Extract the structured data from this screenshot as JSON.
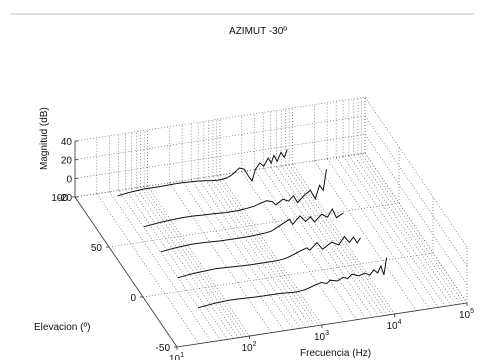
{
  "chart_data": {
    "type": "line",
    "projection": "3d-waterfall",
    "title": "AZIMUT -30º",
    "xlabel": "Frecuencia (Hz)",
    "ylabel": "Elevacion (º)",
    "zlabel": "Magnitud (dB)",
    "x_scale": "log",
    "xlim": [
      10,
      100000
    ],
    "ylim": [
      -50,
      100
    ],
    "zlim": [
      -20,
      40
    ],
    "x_ticks": [
      {
        "base": "10",
        "exp": "1",
        "value": 10
      },
      {
        "base": "10",
        "exp": "2",
        "value": 100
      },
      {
        "base": "10",
        "exp": "3",
        "value": 1000
      },
      {
        "base": "10",
        "exp": "4",
        "value": 10000
      },
      {
        "base": "10",
        "exp": "5",
        "value": 100000
      }
    ],
    "y_ticks": [
      {
        "label": "-50",
        "value": -50
      },
      {
        "label": "0",
        "value": 0
      },
      {
        "label": "50",
        "value": 50
      },
      {
        "label": "100",
        "value": 100
      }
    ],
    "z_ticks": [
      {
        "label": "-20",
        "value": -20
      },
      {
        "label": "0",
        "value": 0
      },
      {
        "label": "20",
        "value": 20
      },
      {
        "label": "40",
        "value": 40
      }
    ],
    "grid": true,
    "series": [
      {
        "elevation": 80,
        "x": [
          25,
          40,
          60,
          80,
          100,
          150,
          200,
          300,
          400,
          500,
          600,
          700,
          800,
          900,
          1000,
          1200,
          1400,
          1600,
          1800,
          2000,
          2300,
          2600,
          3000,
          3300,
          3600,
          4000,
          4500,
          5000,
          5500
        ],
        "z": [
          -2,
          0,
          1,
          1,
          1,
          1.5,
          1.5,
          1,
          0,
          -1,
          -1.5,
          -1.5,
          -0.5,
          1,
          3,
          8,
          6,
          -2,
          -8,
          4,
          10,
          6,
          14,
          8,
          16,
          9,
          18,
          12,
          20
        ]
      },
      {
        "elevation": 50,
        "x": [
          30,
          50,
          80,
          100,
          150,
          200,
          300,
          400,
          500,
          600,
          700,
          800,
          1000,
          1200,
          1500,
          1800,
          2000,
          2500,
          3000,
          3500,
          4000,
          5000,
          6000,
          7000,
          8000,
          9000,
          10000
        ],
        "z": [
          -4,
          -2,
          -1,
          -0.5,
          -0.5,
          -1,
          -1.5,
          -2,
          -2,
          -2,
          -1.5,
          -1,
          0,
          2,
          4,
          2,
          -2,
          3,
          0,
          5,
          -3,
          4,
          8,
          -2,
          12,
          6,
          28
        ]
      },
      {
        "elevation": 25,
        "x": [
          30,
          50,
          80,
          100,
          150,
          200,
          300,
          400,
          500,
          600,
          800,
          1000,
          1200,
          1500,
          1800,
          2000,
          2500,
          3000,
          3500,
          4000,
          5000,
          6000,
          7000,
          8000,
          10000
        ],
        "z": [
          -4,
          -2,
          -1,
          -1,
          -1.5,
          -2,
          -2,
          -2,
          -2,
          -1.5,
          -1,
          0,
          3,
          7,
          10,
          4,
          12,
          5,
          9,
          3,
          10,
          6,
          14,
          4,
          8
        ]
      },
      {
        "elevation": 0,
        "x": [
          30,
          50,
          80,
          100,
          150,
          200,
          300,
          400,
          500,
          700,
          900,
          1000,
          1200,
          1500,
          1800,
          2000,
          2500,
          3000,
          4000,
          5000,
          6000,
          7000,
          8000,
          9000,
          10000
        ],
        "z": [
          -5,
          -3,
          -2,
          -1.5,
          -2,
          -2.5,
          -3,
          -3,
          -3,
          -3,
          -2,
          -1,
          1,
          4,
          6,
          3,
          10,
          2,
          8,
          4,
          12,
          5,
          10,
          3,
          8
        ]
      },
      {
        "elevation": -30,
        "x": [
          30,
          50,
          80,
          100,
          150,
          200,
          300,
          400,
          500,
          600,
          700,
          900,
          1000,
          1200,
          1500,
          1800,
          2000,
          2500,
          3000,
          3500,
          4000,
          5000,
          6000,
          7000,
          8000,
          9000,
          10000,
          11000,
          12000
        ],
        "z": [
          -5,
          -3,
          -2,
          -2,
          -2.5,
          -3,
          -3,
          -3,
          -3.5,
          -4,
          -4,
          -3,
          -2,
          0,
          2,
          0,
          3,
          1,
          4,
          2,
          6,
          3,
          5,
          2,
          7,
          3,
          10,
          0,
          18
        ]
      }
    ]
  }
}
